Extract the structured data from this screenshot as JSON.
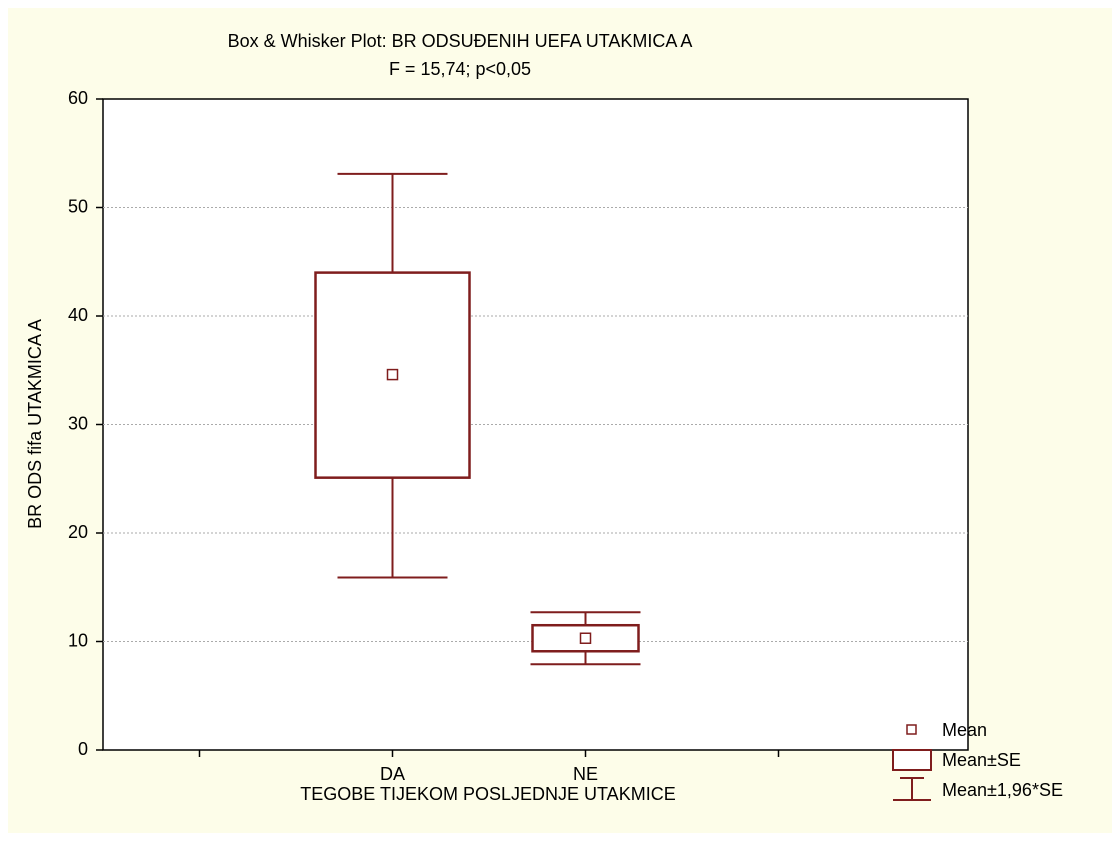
{
  "chart_data": {
    "type": "box",
    "title": "Box & Whisker Plot: BR ODSUĐENIH UEFA UTAKMICA A",
    "subtitle": "F = 15,74; p<0,05",
    "x_label": "TEGOBE TIJEKOM POSLJEDNJE UTAKMICE",
    "y_label": "BR ODS fifa UTAKMICA A",
    "categories": [
      "DA",
      "NE"
    ],
    "boxes": [
      {
        "mean": 34.6,
        "box_low": 25.1,
        "box_high": 44.0,
        "whisker_low": 15.9,
        "whisker_high": 53.1
      },
      {
        "mean": 10.3,
        "box_low": 9.1,
        "box_high": 11.5,
        "whisker_low": 7.9,
        "whisker_high": 12.7
      }
    ],
    "color": "#7f1d1d",
    "legend": [
      "Mean",
      "Mean±SE",
      "Mean±1,96*SE"
    ],
    "ylim": [
      0,
      60
    ],
    "yticks": [
      0,
      10,
      20,
      30,
      40,
      50,
      60
    ],
    "grid": true
  }
}
